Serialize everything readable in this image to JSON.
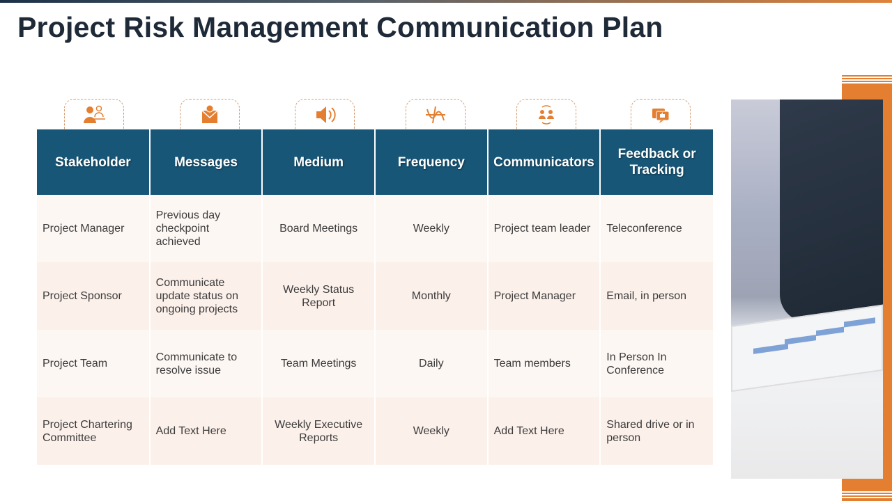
{
  "title": "Project Risk Management Communication Plan",
  "accent_color": "#e47f32",
  "header_color": "#175677",
  "columns": [
    {
      "label": "Stakeholder",
      "icon": "stakeholder-icon"
    },
    {
      "label": "Messages",
      "icon": "envelope-message-icon"
    },
    {
      "label": "Medium",
      "icon": "speaker-icon"
    },
    {
      "label": "Frequency",
      "icon": "wave-frequency-icon"
    },
    {
      "label": "Communicators",
      "icon": "people-cycle-icon"
    },
    {
      "label": "Feedback or Tracking",
      "icon": "feedback-thumbs-up-icon"
    }
  ],
  "rows": [
    [
      "Project Manager",
      "Previous day checkpoint achieved",
      "Board Meetings",
      "Weekly",
      "Project team leader",
      "Teleconference"
    ],
    [
      "Project Sponsor",
      "Communicate update status on ongoing projects",
      "Weekly Status Report",
      "Monthly",
      "Project Manager",
      "Email, in person"
    ],
    [
      "Project Team",
      "Communicate to resolve issue",
      "Team Meetings",
      "Daily",
      "Team members",
      "In Person      In Conference"
    ],
    [
      "Project Chartering Committee",
      "Add Text Here",
      "Weekly Executive Reports",
      "Weekly",
      "Add Text Here",
      "Shared drive or in person"
    ]
  ]
}
